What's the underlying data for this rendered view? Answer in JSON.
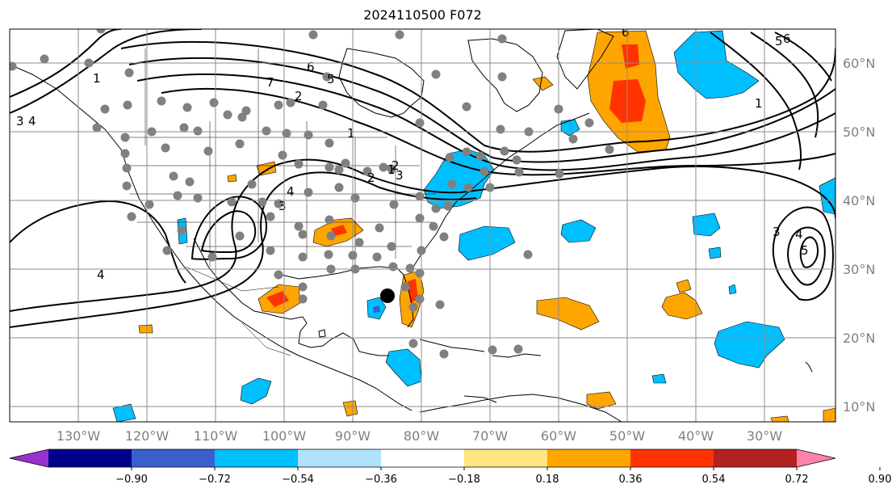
{
  "title": "2024110500 F072",
  "lon_labels": [
    "130°W",
    "120°W",
    "110°W",
    "100°W",
    "90°W",
    "80°W",
    "70°W",
    "60°W",
    "50°W",
    "40°W",
    "30°W"
  ],
  "lat_labels": [
    "60°N",
    "50°N",
    "40°N",
    "30°N",
    "20°N",
    "10°N"
  ],
  "colorbar": {
    "ticks": [
      "−0.90",
      "−0.72",
      "−0.54",
      "−0.36",
      "−0.18",
      "0.18",
      "0.36",
      "0.54",
      "0.72",
      "0.90"
    ],
    "colors": [
      "#9932cc",
      "#00008b",
      "#3a5fcd",
      "#00bfff",
      "#b0e2ff",
      "#ffffff",
      "#ffe680",
      "#ffa500",
      "#ff3300",
      "#b22222",
      "#ff82ab"
    ]
  },
  "contour_labels": [
    "1",
    "2",
    "3",
    "4",
    "5",
    "6",
    "7",
    "1",
    "2",
    "3",
    "4",
    "5",
    "6",
    "1",
    "3",
    "4",
    "5",
    "6",
    "2",
    "3",
    "1",
    "4"
  ],
  "colors": {
    "grid": "#8c8c8c",
    "coast": "#000000",
    "station": "#808080",
    "marker": "#000000"
  }
}
